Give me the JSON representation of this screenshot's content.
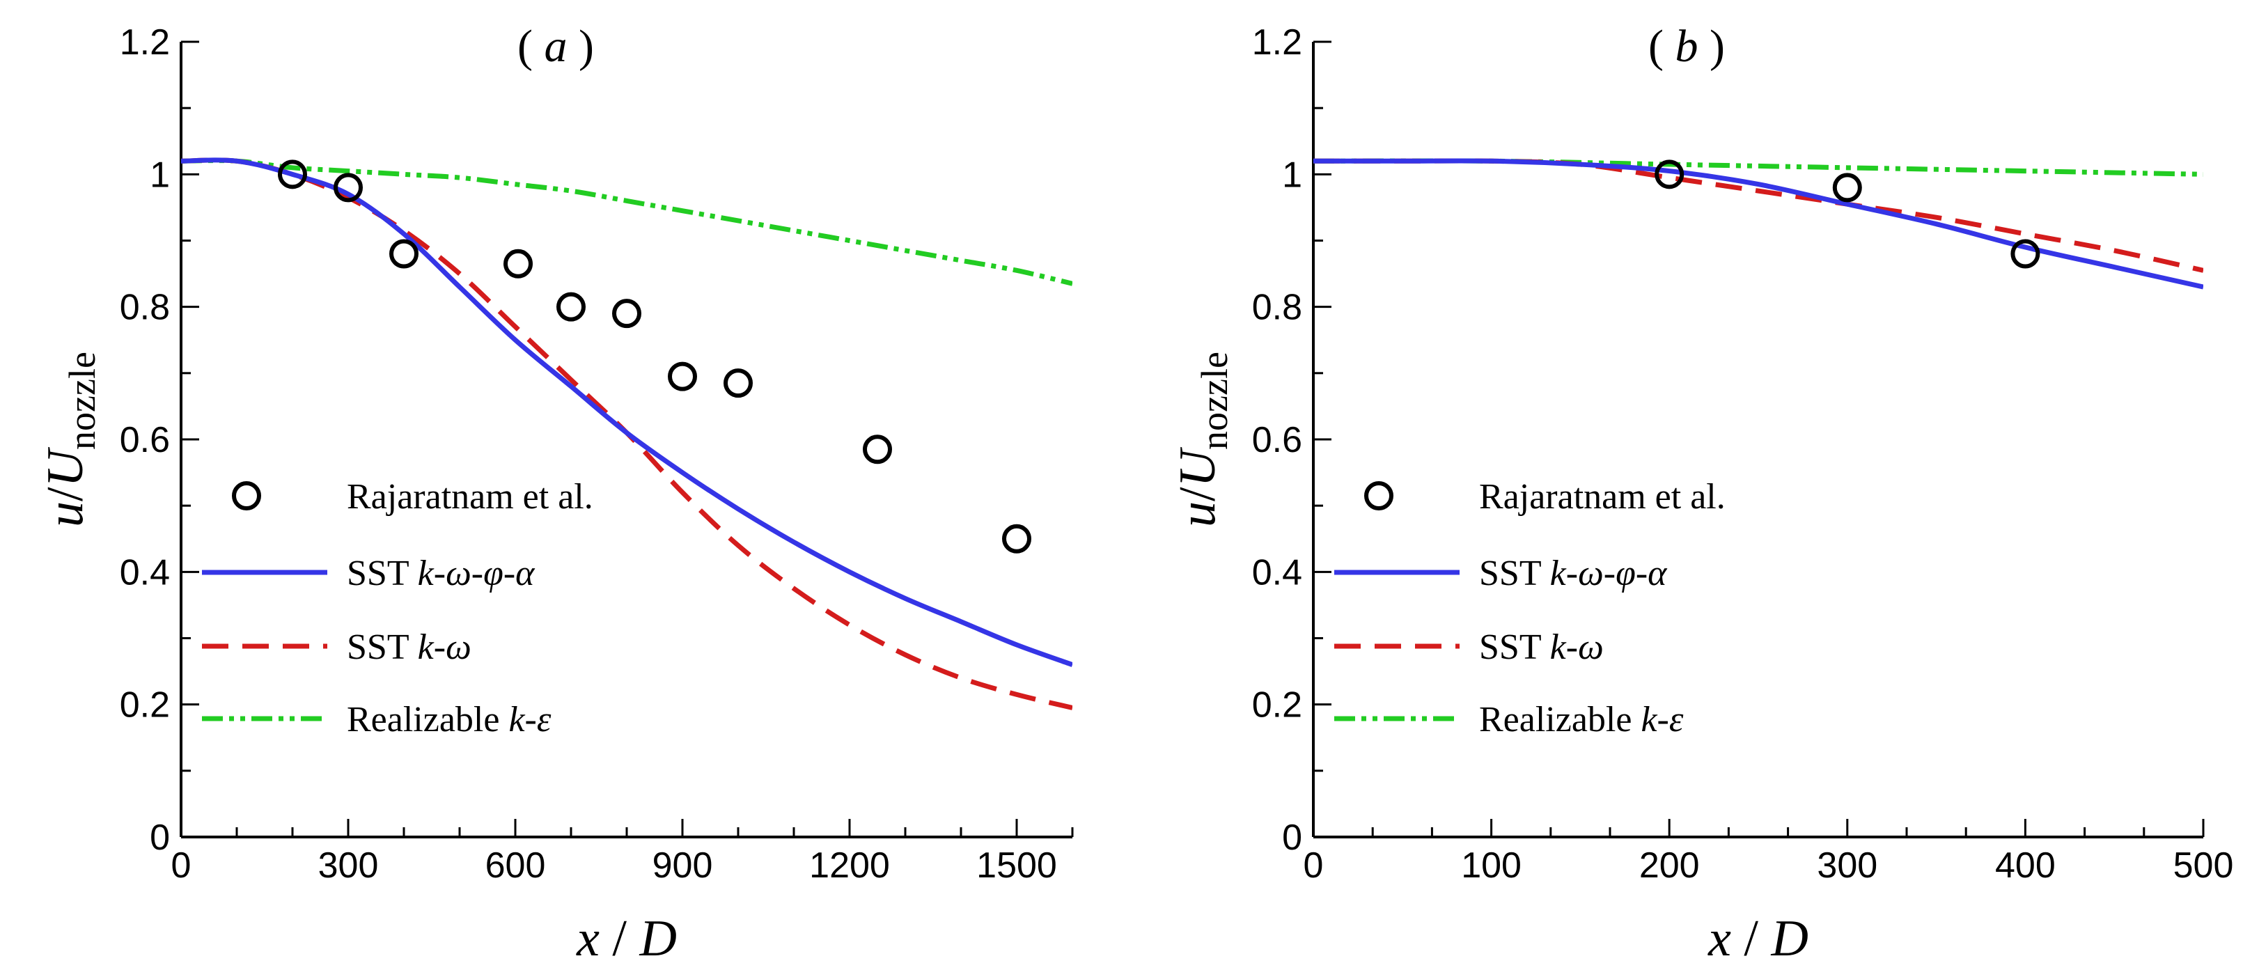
{
  "chart_data": [
    {
      "type": "line",
      "panel_label": "a",
      "xlabel_var": "x",
      "xlabel_sep": " / ",
      "xlabel_den": "D",
      "ylabel_num": "u",
      "ylabel_slash": "/",
      "ylabel_den": "U",
      "ylabel_sub": "nozzle",
      "xlim": [
        0,
        1600
      ],
      "ylim": [
        0,
        1.2
      ],
      "xticks": [
        0,
        300,
        600,
        900,
        1200,
        1500
      ],
      "xtick_labels": [
        "0",
        "300",
        "600",
        "900",
        "1200",
        "1500"
      ],
      "yticks": [
        0,
        0.2,
        0.4,
        0.6,
        0.8,
        1,
        1.2
      ],
      "ytick_labels": [
        "0",
        "0.2",
        "0.4",
        "0.6",
        "0.8",
        "1",
        "1.2"
      ],
      "legend_position": "bottom-left",
      "series": [
        {
          "name": "Rajaratnam et al.",
          "style": "circles",
          "color": "#000000",
          "x": [
            200,
            300,
            400,
            605,
            700,
            800,
            900,
            1000,
            1250,
            1500
          ],
          "y": [
            1.0,
            0.98,
            0.88,
            0.865,
            0.8,
            0.79,
            0.695,
            0.685,
            0.585,
            0.45
          ]
        },
        {
          "name": "SST k-ω-φ-α",
          "label_prefix": "SST ",
          "label_italic": "k-ω-φ-α",
          "style": "solid",
          "color": "#3535e6",
          "x": [
            0,
            100,
            200,
            300,
            400,
            500,
            600,
            700,
            800,
            900,
            1000,
            1100,
            1200,
            1300,
            1400,
            1500,
            1600
          ],
          "y": [
            1.02,
            1.02,
            1.0,
            0.97,
            0.91,
            0.83,
            0.75,
            0.68,
            0.61,
            0.55,
            0.495,
            0.445,
            0.4,
            0.36,
            0.325,
            0.29,
            0.26
          ]
        },
        {
          "name": "SST k-ω",
          "label_prefix": "SST ",
          "label_italic": "k-ω",
          "style": "dashed",
          "color": "#d41c1c",
          "x": [
            0,
            100,
            200,
            300,
            400,
            500,
            600,
            700,
            800,
            900,
            1000,
            1100,
            1200,
            1300,
            1400,
            1500,
            1600
          ],
          "y": [
            1.02,
            1.02,
            1.0,
            0.965,
            0.915,
            0.85,
            0.77,
            0.69,
            0.61,
            0.52,
            0.44,
            0.375,
            0.32,
            0.275,
            0.24,
            0.215,
            0.195
          ]
        },
        {
          "name": "Realizable k-ε",
          "label_prefix": "Realizable  ",
          "label_italic": "k-ε",
          "style": "dashdotdot",
          "color": "#22cc22",
          "x": [
            0,
            100,
            200,
            300,
            400,
            500,
            600,
            700,
            800,
            900,
            1000,
            1100,
            1200,
            1300,
            1400,
            1500,
            1600
          ],
          "y": [
            1.02,
            1.02,
            1.01,
            1.005,
            1.0,
            0.995,
            0.985,
            0.975,
            0.96,
            0.945,
            0.93,
            0.915,
            0.9,
            0.885,
            0.87,
            0.855,
            0.835
          ]
        }
      ]
    },
    {
      "type": "line",
      "panel_label": "b",
      "xlabel_var": "x",
      "xlabel_sep": " / ",
      "xlabel_den": "D",
      "ylabel_num": "u",
      "ylabel_slash": "/",
      "ylabel_den": "U",
      "ylabel_sub": "nozzle",
      "xlim": [
        0,
        500
      ],
      "ylim": [
        0,
        1.2
      ],
      "xticks": [
        0,
        100,
        200,
        300,
        400,
        500
      ],
      "xtick_labels": [
        "0",
        "100",
        "200",
        "300",
        "400",
        "500"
      ],
      "yticks": [
        0,
        0.2,
        0.4,
        0.6,
        0.8,
        1,
        1.2
      ],
      "ytick_labels": [
        "0",
        "0.2",
        "0.4",
        "0.6",
        "0.8",
        "1",
        "1.2"
      ],
      "legend_position": "bottom-left",
      "series": [
        {
          "name": "Rajaratnam et al.",
          "style": "circles",
          "color": "#000000",
          "x": [
            200,
            300,
            400
          ],
          "y": [
            1.0,
            0.98,
            0.88
          ]
        },
        {
          "name": "SST k-ω-φ-α",
          "label_prefix": "SST ",
          "label_italic": "k-ω-φ-α",
          "style": "solid",
          "color": "#3535e6",
          "x": [
            0,
            50,
            100,
            150,
            200,
            250,
            300,
            350,
            400,
            450,
            500
          ],
          "y": [
            1.02,
            1.02,
            1.02,
            1.015,
            1.005,
            0.985,
            0.955,
            0.925,
            0.89,
            0.86,
            0.83
          ]
        },
        {
          "name": "SST k-ω",
          "label_prefix": "SST ",
          "label_italic": "k-ω",
          "style": "dashed",
          "color": "#d41c1c",
          "x": [
            0,
            50,
            100,
            150,
            200,
            250,
            300,
            350,
            400,
            450,
            500
          ],
          "y": [
            1.02,
            1.02,
            1.02,
            1.015,
            0.995,
            0.975,
            0.955,
            0.935,
            0.91,
            0.885,
            0.855
          ]
        },
        {
          "name": "Realizable k-ε",
          "label_prefix": "Realizable  ",
          "label_italic": "k-ε",
          "style": "dashdotdot",
          "color": "#22cc22",
          "x": [
            0,
            100,
            200,
            300,
            400,
            500
          ],
          "y": [
            1.02,
            1.02,
            1.015,
            1.01,
            1.005,
            1.0
          ]
        }
      ]
    }
  ]
}
